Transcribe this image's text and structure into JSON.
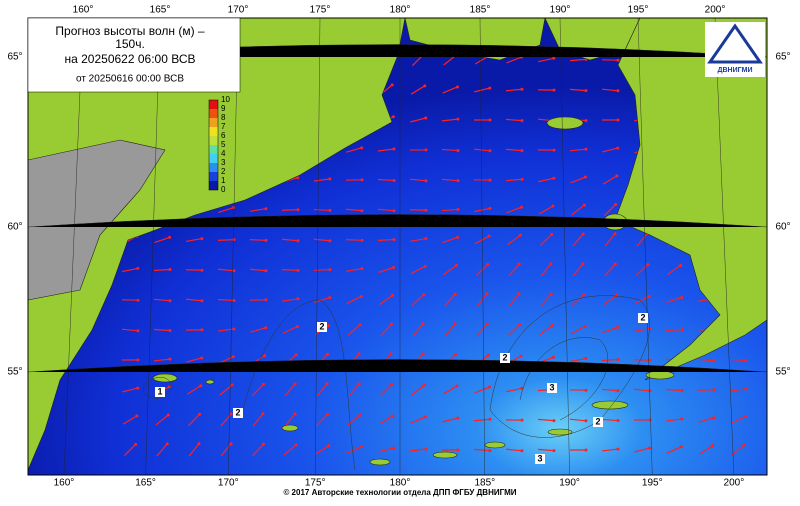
{
  "header": {
    "title_line1": "Прогноз высоты волн (м) –",
    "title_line2": "150ч.",
    "valid": "на 20250622 06:00 ВСВ",
    "issued": "от 20250616 00:00 ВСВ"
  },
  "logo": "ДВНИГМИ",
  "lon_labels": [
    "160°",
    "165°",
    "170°",
    "175°",
    "180°",
    "185°",
    "190°",
    "195°",
    "200°"
  ],
  "lat_labels": [
    "65°",
    "60°",
    "55°"
  ],
  "colorbar_ticks": [
    0,
    1,
    2,
    3,
    4,
    5,
    6,
    7,
    8,
    9,
    10
  ],
  "contour_labels": [
    "1",
    "2",
    "2",
    "2",
    "3",
    "2",
    "3",
    "2"
  ],
  "footer": "© 2017 Авторские технологии отдела ДПП ФГБУ ДВНИГМИ"
}
